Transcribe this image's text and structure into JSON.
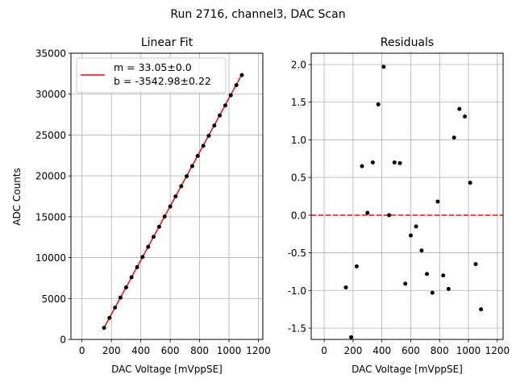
{
  "figure": {
    "suptitle": "Run 2716, channel3, DAC Scan"
  },
  "chart_data": [
    {
      "type": "scatter",
      "title": "Linear Fit",
      "xlabel": "DAC Voltage [mVppSE]",
      "ylabel": "ADC Counts",
      "xlim": [
        -75,
        1230
      ],
      "ylim": [
        0,
        35000
      ],
      "xticks": [
        0,
        200,
        400,
        600,
        800,
        1000,
        1200
      ],
      "yticks": [
        0,
        5000,
        10000,
        15000,
        20000,
        25000,
        30000,
        35000
      ],
      "grid": true,
      "legend": {
        "placement": "top-left",
        "entries": [
          "m = 33.05±0.0",
          "b = -3542.98±0.22"
        ]
      },
      "fit": {
        "slope": 33.05,
        "intercept": -3542.98,
        "color": "#ff0000"
      },
      "point_color": "#000000",
      "x": [
        150,
        187,
        225,
        262,
        300,
        337,
        375,
        412,
        450,
        487,
        525,
        562,
        600,
        637,
        675,
        712,
        750,
        787,
        825,
        862,
        900,
        937,
        975,
        1012,
        1050,
        1087
      ],
      "y": [
        1420,
        2640,
        3890,
        5120,
        6360,
        7600,
        8840,
        10080,
        11320,
        12550,
        13780,
        15020,
        16260,
        17490,
        18730,
        19960,
        21200,
        22440,
        23670,
        24900,
        26150,
        27390,
        28620,
        29860,
        31090,
        32330
      ]
    },
    {
      "type": "scatter",
      "title": "Residuals",
      "xlabel": "DAC Voltage [mVppSE]",
      "ylabel": "",
      "xlim": [
        -90,
        1240
      ],
      "ylim": [
        -1.65,
        2.15
      ],
      "xticks": [
        0,
        200,
        400,
        600,
        800,
        1000,
        1200
      ],
      "yticks": [
        -1.5,
        -1.0,
        -0.5,
        0.0,
        0.5,
        1.0,
        1.5,
        2.0
      ],
      "grid": true,
      "zero_line": {
        "y": 0.0,
        "color": "#ff0000",
        "style": "dashed"
      },
      "point_color": "#000000",
      "x": [
        150,
        187,
        225,
        262,
        300,
        337,
        375,
        412,
        450,
        487,
        525,
        562,
        600,
        637,
        675,
        712,
        750,
        787,
        825,
        862,
        900,
        937,
        975,
        1012,
        1050,
        1087
      ],
      "y": [
        -0.96,
        -1.62,
        -0.68,
        0.65,
        0.03,
        0.7,
        1.47,
        1.97,
        0.0,
        0.7,
        0.69,
        -0.91,
        -0.27,
        -0.15,
        -0.47,
        -0.78,
        -1.03,
        0.18,
        -0.8,
        -0.98,
        1.03,
        1.41,
        1.31,
        0.43,
        -0.65,
        -1.25
      ]
    }
  ]
}
